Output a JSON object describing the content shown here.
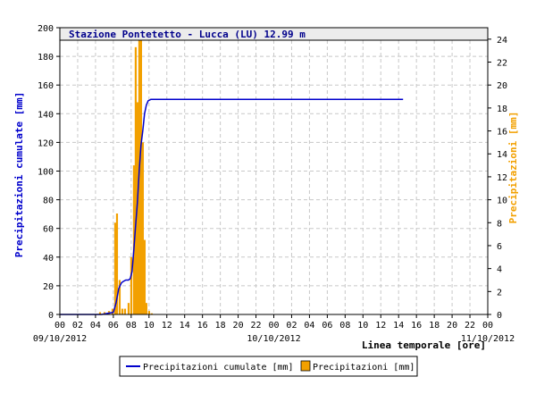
{
  "chart_data": {
    "type": "bar+line",
    "title": "Stazione Pontetetto - Lucca (LU) 12.99 m",
    "xlabel": "Linea temporale [ore]",
    "ylabel_left": "Precipitazioni cumulate [mm]",
    "ylabel_right": "Precipitazioni [mm]",
    "ylim_left": [
      0,
      200
    ],
    "ylim_right": [
      0,
      25
    ],
    "yticks_left": [
      "0",
      "20",
      "40",
      "60",
      "80",
      "100",
      "120",
      "140",
      "160",
      "180",
      "200"
    ],
    "yticks_right": [
      "0",
      "2",
      "4",
      "6",
      "8",
      "10",
      "12",
      "14",
      "16",
      "18",
      "20",
      "22",
      "24"
    ],
    "xlim_hours": [
      0,
      48
    ],
    "xticks": [
      "00",
      "02",
      "04",
      "06",
      "08",
      "10",
      "12",
      "14",
      "16",
      "18",
      "20",
      "22",
      "00",
      "02",
      "04",
      "06",
      "08",
      "10",
      "12",
      "14",
      "16",
      "18",
      "20",
      "22",
      "00"
    ],
    "date_labels": [
      "09/10/2012",
      "10/10/2012",
      "11/10/2012"
    ],
    "grid": true,
    "legend_position": "bottom",
    "colors": {
      "cumulate": "#0000cc",
      "precip": "#f2a000",
      "title_bg": "#ececec",
      "frame": "#000000"
    },
    "series": [
      {
        "name": "Precipitazioni cumulate [mm]",
        "kind": "line",
        "axis": "left",
        "x_hours": [
          0,
          4.7,
          6.0,
          6.3,
          6.6,
          6.9,
          7.1,
          7.4,
          7.7,
          7.9,
          8.1,
          8.3,
          8.5,
          8.7,
          8.9,
          9.1,
          9.3,
          9.5,
          9.7,
          9.9,
          10.2,
          14.5,
          38.5
        ],
        "values": [
          0,
          0,
          1.5,
          8,
          18,
          22,
          23,
          24,
          24,
          25,
          30,
          45,
          62,
          78,
          100,
          118,
          128,
          140,
          146,
          149,
          150,
          150,
          150
        ]
      },
      {
        "name": "Precipitazioni [mm]",
        "kind": "bar",
        "axis": "right",
        "x_hours": [
          4.5,
          5.0,
          5.5,
          5.9,
          6.2,
          6.4,
          6.7,
          7.0,
          7.3,
          7.7,
          8.0,
          8.3,
          8.5,
          8.7,
          8.9,
          9.1,
          9.3,
          9.5,
          9.7,
          10.0,
          10.3
        ],
        "values": [
          0.2,
          0.2,
          0.3,
          0.5,
          8.0,
          8.8,
          3.0,
          0.5,
          0.5,
          1.0,
          5.0,
          13.0,
          23.3,
          18.5,
          24.6,
          24.4,
          15.0,
          6.5,
          1.0,
          0.3,
          0.1
        ]
      }
    ]
  }
}
